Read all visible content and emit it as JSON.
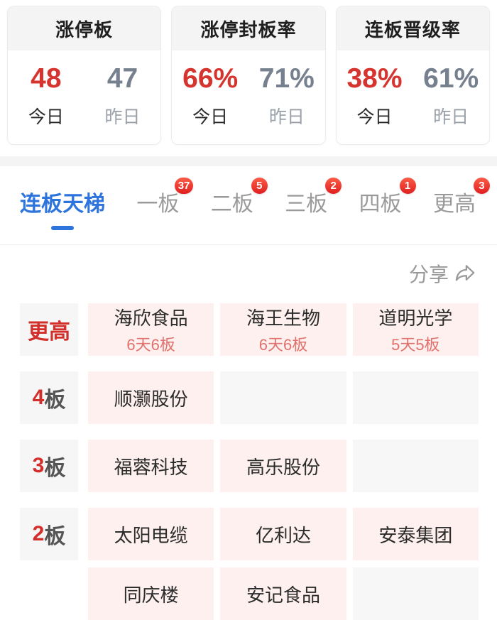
{
  "colors": {
    "accent_red": "#d6342e",
    "label_red": "#d22f2b",
    "badge_red": "#e01f1f",
    "active_blue": "#2e74dd",
    "yesterday_gray": "#76808f",
    "cell_pink": "#fdf0ee",
    "cell_empty": "#f7f7f7",
    "sub_pink": "#e0716c"
  },
  "stat_cards": [
    {
      "title": "涨停板",
      "today": {
        "value": "48",
        "label": "今日"
      },
      "yesterday": {
        "value": "47",
        "label": "昨日"
      }
    },
    {
      "title": "涨停封板率",
      "today": {
        "value": "66%",
        "label": "今日"
      },
      "yesterday": {
        "value": "71%",
        "label": "昨日"
      }
    },
    {
      "title": "连板晋级率",
      "today": {
        "value": "38%",
        "label": "今日"
      },
      "yesterday": {
        "value": "61%",
        "label": "昨日"
      }
    }
  ],
  "tabs": [
    {
      "label": "连板天梯",
      "active": true,
      "badge": ""
    },
    {
      "label": "一板",
      "active": false,
      "badge": "37"
    },
    {
      "label": "二板",
      "active": false,
      "badge": "5"
    },
    {
      "label": "三板",
      "active": false,
      "badge": "2"
    },
    {
      "label": "四板",
      "active": false,
      "badge": "1"
    },
    {
      "label": "更高",
      "active": false,
      "badge": "3"
    }
  ],
  "share": {
    "label": "分享",
    "icon": "share-arrow-icon"
  },
  "ladder": {
    "rows": [
      {
        "label_red": "更高",
        "label_dark": "",
        "continuation": false,
        "cells": [
          {
            "name": "海欣食品",
            "sub": "6天6板"
          },
          {
            "name": "海王生物",
            "sub": "6天6板"
          },
          {
            "name": "道明光学",
            "sub": "5天5板"
          }
        ]
      },
      {
        "label_red": "4",
        "label_dark": "板",
        "continuation": false,
        "cells": [
          {
            "name": "顺灏股份",
            "sub": ""
          },
          null,
          null
        ]
      },
      {
        "label_red": "3",
        "label_dark": "板",
        "continuation": false,
        "cells": [
          {
            "name": "福蓉科技",
            "sub": ""
          },
          {
            "name": "高乐股份",
            "sub": ""
          },
          null
        ]
      },
      {
        "label_red": "2",
        "label_dark": "板",
        "continuation": false,
        "cells": [
          {
            "name": "太阳电缆",
            "sub": ""
          },
          {
            "name": "亿利达",
            "sub": ""
          },
          {
            "name": "安泰集团",
            "sub": ""
          }
        ]
      },
      {
        "label_red": "",
        "label_dark": "",
        "continuation": true,
        "cells": [
          {
            "name": "同庆楼",
            "sub": ""
          },
          {
            "name": "安记食品",
            "sub": ""
          },
          null
        ]
      }
    ]
  }
}
